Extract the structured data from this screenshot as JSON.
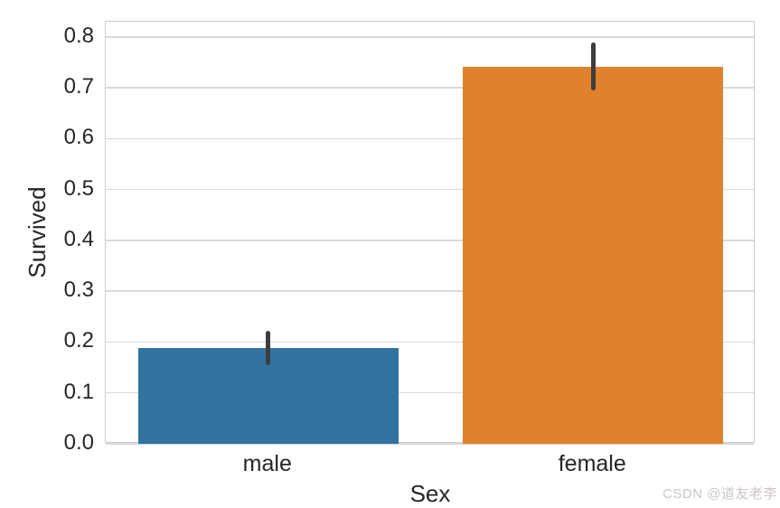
{
  "watermark": {
    "text": "CSDN @道友老李",
    "color": "#cdc6c6"
  },
  "chart_data": {
    "type": "bar",
    "title": "",
    "xlabel": "Sex",
    "ylabel": "Survived",
    "categories": [
      "male",
      "female"
    ],
    "values": [
      0.189,
      0.742
    ],
    "error_bars": [
      [
        0.155,
        0.222
      ],
      [
        0.695,
        0.79
      ]
    ],
    "bar_colors": [
      "#3274a1",
      "#e1812c"
    ],
    "errorbar_color": "#3d3d3d",
    "ylim": [
      0,
      0.83
    ],
    "yticks": [
      0,
      0.1,
      0.2,
      0.3,
      0.4,
      0.5,
      0.6,
      0.7,
      0.8
    ],
    "bar_width_fraction": 0.8,
    "grid": true,
    "grid_color": "#d9d9d9",
    "spine_color": "#cccccc",
    "text_color": "#262626",
    "background": "#ffffff",
    "legend_position": "none"
  }
}
